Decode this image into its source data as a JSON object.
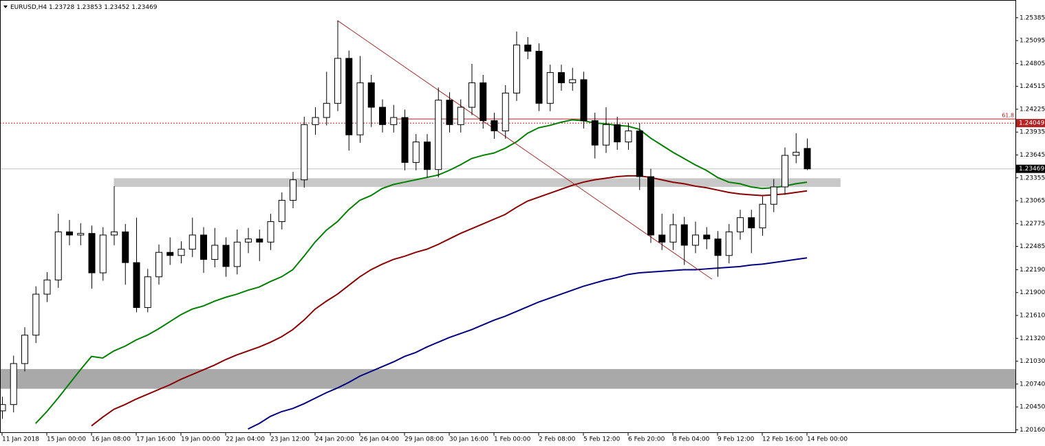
{
  "chart_data": {
    "type": "candlestick",
    "title": "EURUSD,H4",
    "categories": [
      "11 Jan 2018",
      null,
      null,
      null,
      "15 Jan 00:00",
      null,
      null,
      null,
      "16 Jan 08:00",
      null,
      null,
      null,
      "17 Jan 16:00",
      null,
      null,
      null,
      "19 Jan 00:00",
      null,
      null,
      null,
      "22 Jan 04:00",
      null,
      null,
      null,
      "23 Jan 12:00",
      null,
      null,
      null,
      "24 Jan 20:00",
      null,
      null,
      null,
      "26 Jan 04:00",
      null,
      null,
      null,
      "29 Jan 08:00",
      null,
      null,
      null,
      "30 Jan 16:00",
      null,
      null,
      null,
      "1 Feb 00:00",
      null,
      null,
      null,
      "2 Feb 08:00",
      null,
      null,
      null,
      "5 Feb 12:00",
      null,
      null,
      null,
      "6 Feb 20:00",
      null,
      null,
      null,
      "8 Feb 04:00",
      null,
      null,
      null,
      "9 Feb 12:00",
      null,
      null,
      null,
      "12 Feb 16:00",
      null,
      null,
      null,
      "14 Feb 00:00"
    ],
    "open": [
      1.204,
      1.2048,
      1.21,
      1.2136,
      1.2188,
      1.2206,
      1.2267,
      1.2263,
      1.2265,
      1.2215,
      1.2263,
      1.2267,
      1.2228,
      1.2171,
      1.221,
      1.2241,
      1.2237,
      1.2245,
      1.2263,
      1.2232,
      1.225,
      1.2223,
      1.2254,
      1.2258,
      1.2254,
      1.228,
      1.2307,
      1.2333,
      1.2403,
      1.2412,
      1.243,
      1.2487,
      1.239,
      1.2456,
      1.2425,
      1.2403,
      1.2412,
      1.2355,
      1.2381,
      1.2346,
      1.2434,
      1.2403,
      1.2425,
      1.2456,
      1.2408,
      1.2395,
      1.2443,
      1.2504,
      1.2496,
      1.243,
      1.2469,
      1.2456,
      1.246,
      1.2408,
      1.2377,
      1.2403,
      1.2381,
      1.2395,
      1.2337,
      1.2263,
      1.2254,
      1.2276,
      1.225,
      1.2263,
      1.2258,
      1.2237,
      1.2267,
      1.2285,
      1.2272,
      1.2302,
      1.2324,
      1.2364,
      1.23728
    ],
    "high": [
      1.2058,
      1.211,
      1.2146,
      1.2198,
      1.2216,
      1.229,
      1.2282,
      1.2278,
      1.2275,
      1.2273,
      1.2325,
      1.2277,
      1.2285,
      1.222,
      1.2251,
      1.226,
      1.2255,
      1.2285,
      1.2273,
      1.2272,
      1.226,
      1.227,
      1.2272,
      1.227,
      1.229,
      1.2317,
      1.2343,
      1.2413,
      1.2425,
      1.247,
      1.2535,
      1.2497,
      1.249,
      1.2466,
      1.2435,
      1.2428,
      1.2422,
      1.2391,
      1.2391,
      1.245,
      1.2444,
      1.2435,
      1.248,
      1.2466,
      1.2418,
      1.2453,
      1.2521,
      1.2514,
      1.2506,
      1.2479,
      1.2479,
      1.2475,
      1.247,
      1.2418,
      1.2425,
      1.2413,
      1.2405,
      1.2405,
      1.2347,
      1.229,
      1.229,
      1.2286,
      1.228,
      1.2273,
      1.2268,
      1.2277,
      1.2295,
      1.2295,
      1.2312,
      1.2334,
      1.2374,
      1.2392,
      1.23853
    ],
    "low": [
      1.203,
      1.2038,
      1.209,
      1.2126,
      1.2178,
      1.2196,
      1.225,
      1.225,
      1.2195,
      1.2205,
      1.225,
      1.22,
      1.2165,
      1.2165,
      1.22,
      1.2225,
      1.2227,
      1.2235,
      1.2215,
      1.2222,
      1.221,
      1.2213,
      1.224,
      1.223,
      1.2244,
      1.227,
      1.2297,
      1.2323,
      1.239,
      1.2402,
      1.242,
      1.237,
      1.238,
      1.24,
      1.2393,
      1.2393,
      1.2345,
      1.2345,
      1.2336,
      1.2336,
      1.2393,
      1.2393,
      1.2415,
      1.2398,
      1.2385,
      1.2385,
      1.2433,
      1.2486,
      1.242,
      1.242,
      1.2446,
      1.2446,
      1.2398,
      1.236,
      1.2367,
      1.2371,
      1.2371,
      1.232,
      1.2253,
      1.2244,
      1.2244,
      1.2225,
      1.224,
      1.2245,
      1.221,
      1.2227,
      1.2257,
      1.224,
      1.2262,
      1.2292,
      1.2314,
      1.2354,
      1.23452
    ],
    "close": [
      1.2048,
      1.21,
      1.2136,
      1.2188,
      1.2206,
      1.2267,
      1.2263,
      1.2265,
      1.2215,
      1.2263,
      1.2267,
      1.2228,
      1.2171,
      1.221,
      1.2241,
      1.2237,
      1.2245,
      1.2263,
      1.2232,
      1.225,
      1.2223,
      1.2254,
      1.2258,
      1.2254,
      1.228,
      1.2307,
      1.2333,
      1.2403,
      1.2412,
      1.243,
      1.2487,
      1.239,
      1.2456,
      1.2425,
      1.2403,
      1.2412,
      1.2355,
      1.2381,
      1.2346,
      1.2434,
      1.2403,
      1.2425,
      1.2456,
      1.2408,
      1.2395,
      1.2443,
      1.2504,
      1.2496,
      1.243,
      1.2469,
      1.2456,
      1.246,
      1.2408,
      1.2377,
      1.2403,
      1.2381,
      1.2395,
      1.2337,
      1.2263,
      1.2254,
      1.2276,
      1.225,
      1.2263,
      1.2258,
      1.2237,
      1.2267,
      1.2285,
      1.2272,
      1.2302,
      1.2324,
      1.2364,
      1.2368,
      1.23469
    ],
    "moving_averages": [
      {
        "color": "#008000",
        "values": [
          null,
          null,
          null,
          1.2024,
          1.2039,
          1.2056,
          1.2074,
          1.2092,
          1.2109,
          1.2107,
          1.2116,
          1.2122,
          1.213,
          1.2136,
          1.2144,
          1.2153,
          1.2162,
          1.2169,
          1.2173,
          1.2179,
          1.2184,
          1.2188,
          1.2193,
          1.2197,
          1.2204,
          1.221,
          1.2219,
          1.2236,
          1.2254,
          1.2269,
          1.228,
          1.2295,
          1.2307,
          1.2313,
          1.2322,
          1.2327,
          1.233,
          1.2333,
          1.2336,
          1.2339,
          1.2345,
          1.2352,
          1.236,
          1.2364,
          1.2367,
          1.2373,
          1.2381,
          1.2392,
          1.2399,
          1.2402,
          1.2406,
          1.2409,
          1.2408,
          1.2405,
          1.2404,
          1.2402,
          1.2401,
          1.2397,
          1.2386,
          1.2377,
          1.2368,
          1.236,
          1.2352,
          1.2345,
          1.2336,
          1.233,
          1.2328,
          1.2324,
          1.2322,
          1.2323,
          1.2325,
          1.2328,
          1.233
        ]
      },
      {
        "color": "#8b0000",
        "values": [
          null,
          null,
          null,
          null,
          null,
          null,
          null,
          null,
          1.2021,
          1.2032,
          1.2042,
          1.2048,
          1.2055,
          1.2061,
          1.2067,
          1.2073,
          1.208,
          1.2086,
          1.2092,
          1.2098,
          1.2105,
          1.2111,
          1.2116,
          1.2121,
          1.2127,
          1.2134,
          1.2143,
          1.2155,
          1.2169,
          1.2179,
          1.2188,
          1.2199,
          1.221,
          1.2219,
          1.2226,
          1.2232,
          1.2236,
          1.2241,
          1.2245,
          1.2251,
          1.2258,
          1.2265,
          1.2271,
          1.2277,
          1.2283,
          1.2289,
          1.2298,
          1.2306,
          1.2311,
          1.2316,
          1.2321,
          1.2326,
          1.233,
          1.2333,
          1.2335,
          1.2337,
          1.2338,
          1.2338,
          1.2336,
          1.2333,
          1.233,
          1.2328,
          1.2325,
          1.2323,
          1.232,
          1.2317,
          1.2315,
          1.2314,
          1.2313,
          1.2314,
          1.2315,
          1.2317,
          1.2319
        ]
      },
      {
        "color": "#000080",
        "values": [
          null,
          null,
          null,
          null,
          null,
          null,
          null,
          null,
          null,
          null,
          null,
          null,
          null,
          null,
          null,
          null,
          null,
          null,
          null,
          null,
          null,
          null,
          1.2017,
          1.2024,
          1.2033,
          1.2039,
          1.2043,
          1.2049,
          1.2056,
          1.2063,
          1.2069,
          1.2076,
          1.2084,
          1.209,
          1.2096,
          1.2102,
          1.2109,
          1.2114,
          1.2121,
          1.2127,
          1.2133,
          1.2138,
          1.2143,
          1.2149,
          1.2155,
          1.216,
          1.2166,
          1.2172,
          1.2178,
          1.2183,
          1.2188,
          1.2193,
          1.2198,
          1.2202,
          1.2206,
          1.2209,
          1.2213,
          1.2215,
          1.2216,
          1.2217,
          1.2218,
          1.2219,
          1.2219,
          1.222,
          1.2221,
          1.2222,
          1.2223,
          1.2225,
          1.2226,
          1.2228,
          1.223,
          1.2232,
          1.2234
        ]
      }
    ],
    "zones": [
      {
        "from": 1.2324,
        "to": 1.2335,
        "start": 10,
        "end": 75,
        "color": "#c8c8c8"
      },
      {
        "from": 1.2068,
        "to": 1.2093,
        "color": "#a9a9a9"
      }
    ],
    "trendline": {
      "start": [
        30,
        1.2535
      ],
      "end": [
        63.5,
        1.2207
      ],
      "color": "#a52a2a"
    },
    "fib_level": {
      "value": 1.24049,
      "label": "61.8",
      "color": "#b22222"
    },
    "ylim": [
      1.2012,
      1.2561
    ],
    "yticks": [
      1.25385,
      1.25095,
      1.24805,
      1.24515,
      1.24225,
      1.23935,
      1.23645,
      1.23355,
      1.23065,
      1.22775,
      1.22485,
      {
        "value": 1.2219,
        "label": "1.22190"
      },
      {
        "value": 1.219,
        "label": "1.21900"
      },
      {
        "value": 1.2161,
        "label": "1.21610"
      },
      {
        "value": 1.2132,
        "label": "1.21320"
      },
      {
        "value": 1.2103,
        "label": "1.21030"
      },
      {
        "value": 1.2074,
        "label": "1.20740"
      },
      {
        "value": 1.2045,
        "label": "1.20450"
      },
      {
        "value": 1.2016,
        "label": "1.20160"
      }
    ]
  }
}
